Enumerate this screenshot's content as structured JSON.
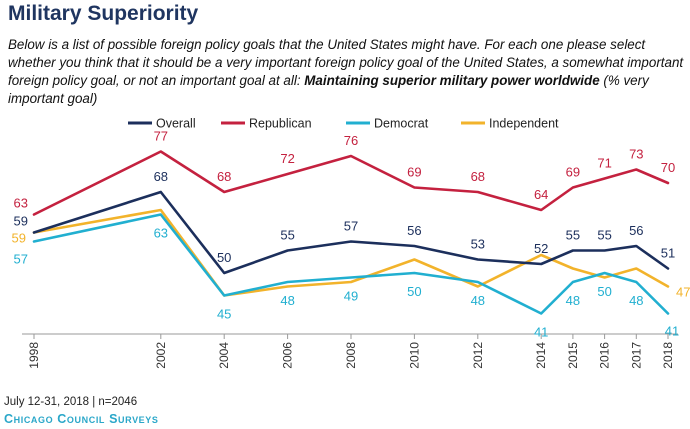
{
  "header": {
    "title": "Military Superiority",
    "subtitle_intro": "Below is a list of possible foreign policy goals that the United States might have. For each one please select whether you think that it should be a very important foreign policy goal of the United States, a somewhat important foreign policy goal, or not an important goal at all: ",
    "subtitle_bold": "Maintaining superior military power worldwide",
    "subtitle_tail": " (% very important goal)"
  },
  "chart_data": {
    "type": "line",
    "title": "Military Superiority",
    "ylabel": "% very important goal",
    "xlabel": "",
    "x": [
      "1998",
      "2002",
      "2004",
      "2006",
      "2008",
      "2010",
      "2012",
      "2014",
      "2015",
      "2016",
      "2017",
      "2018"
    ],
    "ylim": [
      40,
      80
    ],
    "legend_position": "top-center",
    "series": [
      {
        "name": "Overall",
        "color": "#1c2f5c",
        "values": [
          59,
          68,
          50,
          55,
          57,
          56,
          53,
          52,
          55,
          55,
          56,
          51
        ]
      },
      {
        "name": "Republican",
        "color": "#c4213f",
        "values": [
          63,
          77,
          68,
          72,
          76,
          69,
          68,
          64,
          69,
          71,
          73,
          70
        ]
      },
      {
        "name": "Democrat",
        "color": "#21afd0",
        "values": [
          57,
          63,
          45,
          48,
          49,
          50,
          48,
          41,
          48,
          50,
          48,
          41
        ]
      },
      {
        "name": "Independent",
        "color": "#f2b32b",
        "values": [
          59,
          64,
          45,
          47,
          48,
          53,
          47,
          54,
          51,
          49,
          51,
          47
        ]
      }
    ],
    "data_labels": {
      "Overall": [
        "59",
        "68",
        "50",
        "55",
        "57",
        "56",
        "53",
        "52",
        "55",
        "55",
        "56",
        "51"
      ],
      "Republican": [
        "63",
        "77",
        "68",
        "72",
        "76",
        "69",
        "68",
        "64",
        "69",
        "71",
        "73",
        "70"
      ],
      "Democrat": [
        "57",
        "63",
        "45",
        "48",
        "49",
        "50",
        "48",
        "41",
        "48",
        "50",
        "48",
        "41"
      ],
      "Independent": [
        "59",
        null,
        null,
        null,
        null,
        null,
        null,
        null,
        null,
        null,
        null,
        "47"
      ]
    }
  },
  "footer": {
    "date": "July 12-31, 2018 | n=2046",
    "brand": "Chicago Council Surveys"
  }
}
